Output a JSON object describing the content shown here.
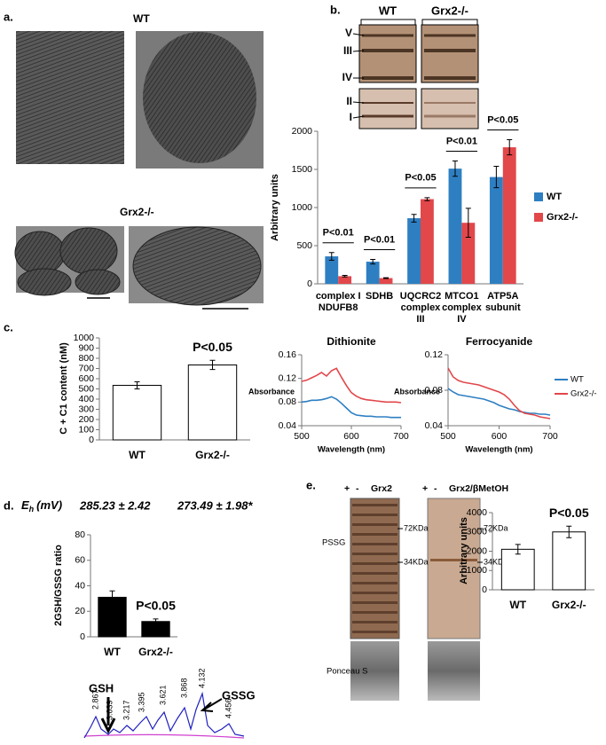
{
  "figure": {
    "panel_labels": [
      "a.",
      "b.",
      "c.",
      "d.",
      "e."
    ],
    "a": {
      "wt": "WT",
      "ko": "Grx2-/-"
    },
    "b": {
      "blot_groups": [
        "WT",
        "Grx2-/-"
      ],
      "bands": [
        "V",
        "III",
        "IV",
        "II",
        "I"
      ]
    },
    "d": {
      "eh_symbol": "E",
      "eh_sub": "h",
      "eh_unit": "(mV)",
      "eh_values": [
        "285.23 ± 2.42",
        "273.49 ± 1.98*"
      ],
      "peaks": [
        "2.867",
        "3.039",
        "3.217",
        "3.395",
        "3.621",
        "3.868",
        "4.132",
        "4.456"
      ],
      "gsh": "GSH",
      "gssg": "GSSG"
    },
    "e": {
      "lanes": [
        "+",
        "-",
        "Grx2",
        "+",
        "-",
        "Grx2/βMetOH"
      ],
      "pssg": "PSSG",
      "markers": [
        "72KDa",
        "34KDa",
        "72KDa",
        "34KDa"
      ],
      "ponceau": "Ponceau S"
    }
  },
  "chart_data": [
    {
      "type": "bar",
      "ylabel": "Arbitrary units",
      "categories": [
        [
          "complex I",
          "NDUFB8"
        ],
        [
          "SDHB"
        ],
        [
          "UQCRC2",
          "complex",
          "III"
        ],
        [
          "MTCO1",
          "complex",
          "IV"
        ],
        [
          "ATP5A",
          "subunit"
        ]
      ],
      "series": [
        {
          "name": "WT",
          "color": "#2e7fc2",
          "values": [
            360,
            290,
            860,
            1510,
            1400
          ],
          "errors": [
            50,
            30,
            50,
            100,
            140
          ]
        },
        {
          "name": "Grx2-/-",
          "color": "#e2474a",
          "values": [
            100,
            75,
            1110,
            800,
            1790
          ],
          "errors": [
            10,
            5,
            20,
            190,
            100
          ]
        }
      ],
      "annotations": [
        "P<0.01",
        "P<0.01",
        "P<0.05",
        "P<0.01",
        "P<0.05"
      ],
      "annotation_bracket": true,
      "ylim": [
        0,
        2000
      ],
      "yticks": [
        0,
        500,
        1000,
        1500,
        2000
      ],
      "legend": "right"
    },
    {
      "type": "bar",
      "ylabel": "C + C1 content (nM)",
      "categories": [
        "WT",
        "Grx2-/-"
      ],
      "values": [
        535,
        735
      ],
      "errors": [
        35,
        45
      ],
      "color": "#ffffff",
      "edgecolor": "#000000",
      "annotations": [
        null,
        "P<0.05"
      ],
      "ylim": [
        0,
        1000
      ],
      "yticks": [
        0,
        100,
        200,
        300,
        400,
        500,
        600,
        700,
        800,
        900,
        1000
      ]
    },
    {
      "type": "line",
      "title": "Dithionite",
      "xlabel": "Wavelength (nm)",
      "ylabel": "Absorbance",
      "x": [
        500,
        510,
        520,
        530,
        540,
        550,
        560,
        570,
        580,
        590,
        600,
        610,
        620,
        630,
        640,
        650,
        660,
        670,
        680,
        690,
        700
      ],
      "series": [
        {
          "color": "#2e7fc2",
          "values": [
            0.08,
            0.081,
            0.083,
            0.083,
            0.084,
            0.086,
            0.089,
            0.085,
            0.078,
            0.07,
            0.062,
            0.058,
            0.057,
            0.056,
            0.056,
            0.055,
            0.055,
            0.055,
            0.054,
            0.054,
            0.054
          ]
        },
        {
          "color": "#e2474a",
          "values": [
            0.115,
            0.117,
            0.121,
            0.125,
            0.13,
            0.124,
            0.133,
            0.137,
            0.122,
            0.108,
            0.096,
            0.09,
            0.086,
            0.084,
            0.083,
            0.082,
            0.081,
            0.08,
            0.08,
            0.08,
            0.079
          ]
        }
      ],
      "xlim": [
        500,
        700
      ],
      "xticks": [
        500,
        600,
        700
      ],
      "ylim": [
        0.04,
        0.16
      ],
      "yticks": [
        0.04,
        0.08,
        0.12,
        0.16
      ]
    },
    {
      "type": "line",
      "title": "Ferrocyanide",
      "xlabel": "Wavelength (nm)",
      "ylabel": "Absorbance",
      "x": [
        500,
        510,
        520,
        530,
        540,
        550,
        560,
        570,
        580,
        590,
        600,
        610,
        620,
        630,
        640,
        650,
        660,
        670,
        680,
        690,
        700
      ],
      "series": [
        {
          "name": "WT",
          "color": "#2e7fc2",
          "values": [
            0.082,
            0.078,
            0.075,
            0.074,
            0.073,
            0.072,
            0.071,
            0.07,
            0.068,
            0.066,
            0.063,
            0.061,
            0.059,
            0.058,
            0.056,
            0.055,
            0.054,
            0.054,
            0.053,
            0.053,
            0.052
          ]
        },
        {
          "name": "Grx2-/-",
          "color": "#e2474a",
          "values": [
            0.105,
            0.095,
            0.091,
            0.089,
            0.088,
            0.087,
            0.086,
            0.084,
            0.082,
            0.08,
            0.078,
            0.075,
            0.07,
            0.063,
            0.057,
            0.054,
            0.053,
            0.052,
            0.05,
            0.049,
            0.048
          ]
        }
      ],
      "xlim": [
        500,
        700
      ],
      "xticks": [
        500,
        600,
        700
      ],
      "ylim": [
        0.04,
        0.12
      ],
      "yticks": [
        0.04,
        0.08,
        0.12
      ],
      "legend": "right"
    },
    {
      "type": "bar",
      "ylabel": "2GSH/GSSG ratio",
      "categories": [
        "WT",
        "Grx2-/-"
      ],
      "values": [
        31,
        12
      ],
      "errors": [
        5,
        2
      ],
      "color": "#000000",
      "edgecolor": "#000000",
      "annotations": [
        null,
        "P<0.05"
      ],
      "ylim": [
        0,
        80
      ],
      "yticks": [
        0,
        20,
        40,
        60,
        80
      ]
    },
    {
      "type": "bar",
      "ylabel": "Arbitrary units",
      "categories": [
        "WT",
        "Grx2-/-"
      ],
      "values": [
        2100,
        3000
      ],
      "errors": [
        250,
        300
      ],
      "color": "#ffffff",
      "edgecolor": "#000000",
      "annotations": [
        null,
        "P<0.05"
      ],
      "ylim": [
        0,
        4000
      ],
      "yticks": [
        0,
        1000,
        2000,
        3000,
        4000
      ]
    }
  ]
}
